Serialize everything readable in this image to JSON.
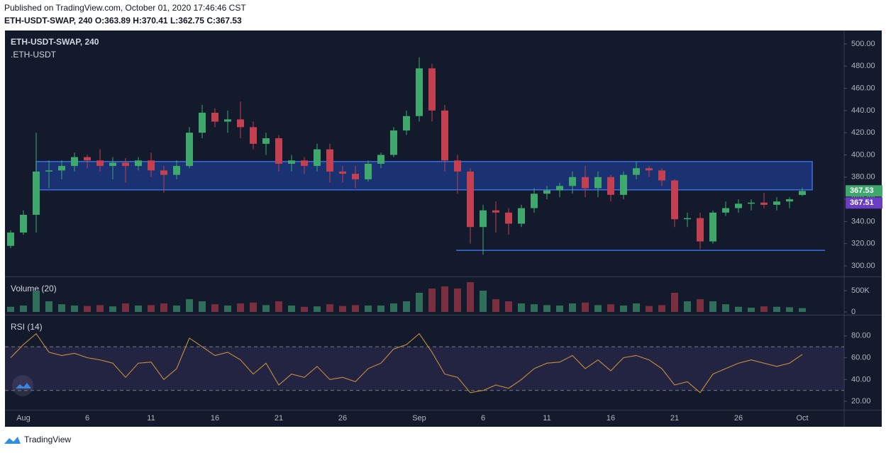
{
  "header": {
    "published": "Published on TradingView.com, October 01, 2020 17:46:46 CST",
    "symbol": "ETH-USDT-SWAP, 240",
    "ohlc": [
      "O:363.89",
      "H:370.41",
      "L:362.75",
      "C:367.53"
    ]
  },
  "chart_data": [
    {
      "type": "candlestick",
      "title": "ETH-USDT-SWAP, 240",
      "subtitle": ".ETH-USDT",
      "categories": [
        null,
        "Aug",
        null,
        null,
        null,
        null,
        "6",
        null,
        null,
        null,
        null,
        "11",
        null,
        null,
        null,
        null,
        "16",
        null,
        null,
        null,
        null,
        "21",
        null,
        null,
        null,
        null,
        "26",
        null,
        null,
        null,
        null,
        null,
        "Sep",
        null,
        null,
        null,
        null,
        "6",
        null,
        null,
        null,
        null,
        "11",
        null,
        null,
        null,
        null,
        "16",
        null,
        null,
        null,
        null,
        "21",
        null,
        null,
        null,
        null,
        "26",
        null,
        null,
        null,
        null,
        "Oct"
      ],
      "open": [
        318,
        330,
        346,
        385,
        386,
        390,
        398,
        395,
        390,
        393,
        390,
        395,
        386,
        382,
        390,
        420,
        438,
        430,
        432,
        425,
        410,
        415,
        392,
        395,
        390,
        405,
        385,
        383,
        378,
        392,
        400,
        422,
        435,
        478,
        440,
        395,
        385,
        335,
        350,
        348,
        338,
        352,
        365,
        368,
        372,
        380,
        370,
        380,
        364,
        382,
        388,
        386,
        377,
        342,
        343,
        322,
        348,
        352,
        356,
        357,
        355,
        358,
        363.89
      ],
      "high": [
        332,
        350,
        420,
        395,
        395,
        402,
        400,
        405,
        398,
        397,
        398,
        402,
        390,
        395,
        425,
        445,
        442,
        440,
        448,
        430,
        420,
        418,
        400,
        398,
        410,
        410,
        390,
        390,
        395,
        402,
        425,
        440,
        488,
        482,
        445,
        400,
        388,
        355,
        358,
        352,
        355,
        370,
        372,
        375,
        385,
        390,
        385,
        382,
        385,
        394,
        390,
        388,
        378,
        348,
        348,
        350,
        358,
        360,
        360,
        366,
        362,
        362,
        370.41
      ],
      "low": [
        316,
        328,
        330,
        370,
        378,
        385,
        388,
        385,
        378,
        375,
        386,
        380,
        366,
        378,
        388,
        415,
        425,
        420,
        415,
        405,
        400,
        385,
        385,
        383,
        385,
        375,
        375,
        370,
        376,
        388,
        398,
        418,
        430,
        430,
        385,
        365,
        320,
        310,
        330,
        328,
        335,
        348,
        360,
        362,
        365,
        362,
        362,
        358,
        360,
        378,
        380,
        372,
        335,
        335,
        315,
        320,
        345,
        348,
        350,
        352,
        350,
        352,
        362.75
      ],
      "close": [
        330,
        346,
        385,
        386,
        390,
        398,
        395,
        390,
        393,
        390,
        395,
        386,
        382,
        390,
        420,
        438,
        430,
        432,
        425,
        410,
        415,
        392,
        395,
        390,
        405,
        385,
        383,
        378,
        392,
        400,
        422,
        435,
        478,
        440,
        395,
        385,
        335,
        350,
        348,
        338,
        352,
        365,
        368,
        372,
        380,
        370,
        380,
        364,
        382,
        388,
        386,
        377,
        342,
        343,
        322,
        348,
        352,
        356,
        357,
        355,
        358,
        360,
        367.53
      ],
      "up_color": "#3fa86c",
      "down_color": "#c2404f",
      "ylim": [
        290.4,
        511.5
      ],
      "yticks": [
        {
          "value": 300,
          "label": "300.00"
        },
        {
          "value": 320,
          "label": "320.00"
        },
        {
          "value": 340,
          "label": "340.00"
        },
        {
          "value": 360,
          "label": "360.00"
        },
        {
          "value": 380,
          "label": "380.00"
        },
        {
          "value": 400,
          "label": "400.00"
        },
        {
          "value": 420,
          "label": "420.00"
        },
        {
          "value": 440,
          "label": "440.00"
        },
        {
          "value": 460,
          "label": "460.00"
        },
        {
          "value": 480,
          "label": "480.00"
        },
        {
          "value": 500,
          "label": "500.00"
        }
      ],
      "zone": [
        368.5,
        394
      ],
      "zone_color": "#1e3a8a",
      "support_line": 314,
      "line_color": "#3d6ee0",
      "price_tags": [
        {
          "value": 367.53,
          "color": "#3fa86c"
        },
        {
          "value": 367.51,
          "color": "#6a3fc4"
        }
      ]
    },
    {
      "type": "bar",
      "title": "Volume (20)",
      "values": [
        120000,
        150000,
        500000,
        250000,
        180000,
        150000,
        140000,
        160000,
        130000,
        200000,
        150000,
        160000,
        200000,
        150000,
        300000,
        250000,
        180000,
        150000,
        200000,
        220000,
        160000,
        250000,
        150000,
        120000,
        130000,
        180000,
        140000,
        160000,
        150000,
        150000,
        200000,
        250000,
        450000,
        550000,
        600000,
        550000,
        700000,
        500000,
        300000,
        250000,
        200000,
        180000,
        160000,
        150000,
        200000,
        220000,
        160000,
        180000,
        150000,
        200000,
        140000,
        160000,
        450000,
        250000,
        300000,
        250000,
        180000,
        120000,
        100000,
        130000,
        120000,
        110000,
        90000
      ],
      "up_color": "#2f6f5a",
      "down_color": "#7a2f40",
      "ylim": [
        -67000,
        750000
      ],
      "yticks": [
        0,
        {
          "value": 500000,
          "label": "500K"
        }
      ]
    },
    {
      "type": "line",
      "title": "RSI (14)",
      "values": [
        60,
        72,
        82,
        65,
        62,
        64,
        60,
        58,
        55,
        42,
        55,
        56,
        40,
        50,
        78,
        70,
        62,
        65,
        58,
        45,
        55,
        35,
        45,
        42,
        52,
        40,
        42,
        38,
        50,
        55,
        68,
        72,
        82,
        65,
        45,
        42,
        28,
        30,
        35,
        32,
        40,
        50,
        55,
        56,
        62,
        50,
        58,
        48,
        60,
        62,
        58,
        50,
        35,
        38,
        28,
        45,
        50,
        55,
        58,
        55,
        52,
        55,
        63
      ],
      "color": "#b7873b",
      "bands": [
        30,
        70
      ],
      "band_color": "#7e57c2",
      "ylim": [
        12.3,
        98.7
      ],
      "yticks": [
        {
          "value": 20,
          "label": "20.00"
        },
        {
          "value": 40,
          "label": "40.00"
        },
        {
          "value": 60,
          "label": "60.00"
        },
        {
          "value": 80,
          "label": "80.00"
        }
      ]
    }
  ],
  "footer": {
    "brand": "TradingView"
  }
}
